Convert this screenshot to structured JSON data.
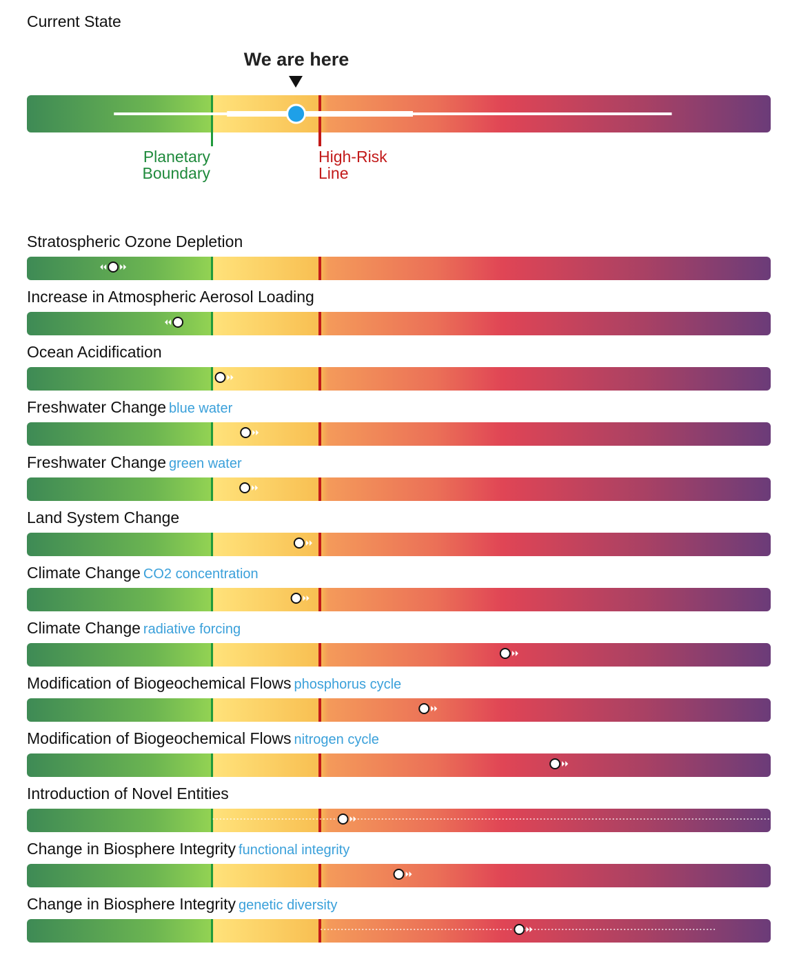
{
  "chart_data": {
    "type": "range-indicator",
    "title": "Current State",
    "scale": {
      "planetary_boundary": 0.25,
      "high_risk_line": 0.395,
      "colors": [
        "#3e8a55",
        "#93d353",
        "#ffe27a",
        "#f49a5a",
        "#e04555",
        "#6b3c79"
      ]
    },
    "summary": {
      "label": "We are here",
      "value": 0.362,
      "outer_range": [
        0.117,
        0.867
      ],
      "inner_range": [
        0.269,
        0.519
      ],
      "pb_label_line1": "Planetary",
      "pb_label_line2": "Boundary",
      "hr_label_line1": "High-Risk",
      "hr_label_line2": "Line"
    },
    "rows": [
      {
        "name": "Stratospheric Ozone Depletion",
        "sub": "",
        "value": 0.116,
        "trend": "both"
      },
      {
        "name": "Increase in Atmospheric Aerosol Loading",
        "sub": "",
        "value": 0.203,
        "trend": "left"
      },
      {
        "name": "Ocean Acidification",
        "sub": "",
        "value": 0.26,
        "trend": "right"
      },
      {
        "name": "Freshwater Change",
        "sub": "blue water",
        "value": 0.294,
        "trend": "right"
      },
      {
        "name": "Freshwater Change",
        "sub": "green water",
        "value": 0.293,
        "trend": "right"
      },
      {
        "name": "Land System Change",
        "sub": "",
        "value": 0.366,
        "trend": "right"
      },
      {
        "name": "Climate Change",
        "sub": "CO2 concentration",
        "value": 0.362,
        "trend": "right"
      },
      {
        "name": "Climate Change",
        "sub": "radiative forcing",
        "value": 0.643,
        "trend": "right"
      },
      {
        "name": "Modification of Biogeochemical Flows",
        "sub": "phosphorus cycle",
        "value": 0.534,
        "trend": "right"
      },
      {
        "name": "Modification of Biogeochemical Flows",
        "sub": "nitrogen cycle",
        "value": 0.71,
        "trend": "right"
      },
      {
        "name": "Introduction of Novel Entities",
        "sub": "",
        "value": 0.425,
        "trend": "right",
        "uncertainty": [
          0.25,
          1.0
        ]
      },
      {
        "name": "Change in Biosphere Integrity",
        "sub": "functional integrity",
        "value": 0.5,
        "trend": "right"
      },
      {
        "name": "Change in Biosphere Integrity",
        "sub": "genetic diversity",
        "value": 0.662,
        "trend": "right",
        "uncertainty": [
          0.395,
          0.925
        ]
      }
    ]
  }
}
